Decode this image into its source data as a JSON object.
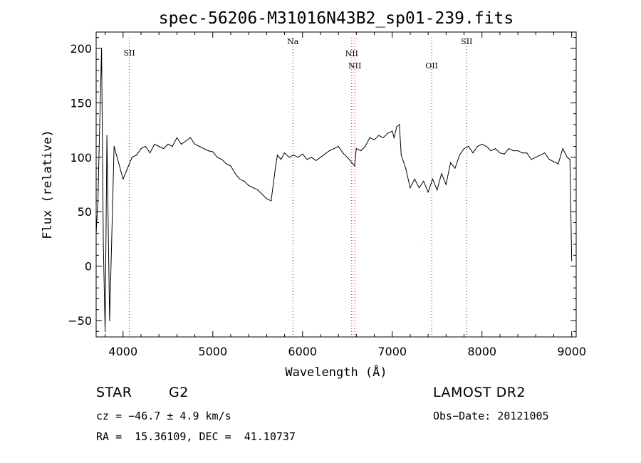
{
  "chart_data": {
    "type": "line",
    "title": "spec-56206-M31016N43B2_sp01-239.fits",
    "xlabel": "Wavelength (Å)",
    "ylabel": "Flux (relative)",
    "xlim": [
      3700,
      9050
    ],
    "ylim": [
      -65,
      215
    ],
    "x_ticks": [
      4000,
      5000,
      6000,
      7000,
      8000,
      9000
    ],
    "y_ticks": [
      -50,
      0,
      50,
      100,
      150,
      200
    ],
    "grid": false,
    "series": [
      {
        "x": [
          3700,
          3720,
          3740,
          3760,
          3780,
          3800,
          3820,
          3850,
          3900,
          3950,
          4000,
          4050,
          4100,
          4150,
          4200,
          4250,
          4300,
          4350,
          4400,
          4450,
          4500,
          4550,
          4600,
          4650,
          4700,
          4750,
          4800,
          4850,
          4900,
          4950,
          5000,
          5050,
          5100,
          5150,
          5200,
          5250,
          5300,
          5350,
          5400,
          5450,
          5500,
          5550,
          5600,
          5650,
          5700,
          5720,
          5740,
          5760,
          5800,
          5850,
          5900,
          5950,
          6000,
          6050,
          6100,
          6150,
          6200,
          6250,
          6300,
          6350,
          6400,
          6450,
          6500,
          6550,
          6580,
          6600,
          6650,
          6700,
          6750,
          6800,
          6850,
          6900,
          6950,
          7000,
          7020,
          7050,
          7080,
          7100,
          7150,
          7200,
          7250,
          7300,
          7350,
          7400,
          7450,
          7500,
          7550,
          7600,
          7650,
          7700,
          7750,
          7800,
          7850,
          7900,
          7950,
          8000,
          8050,
          8100,
          8150,
          8200,
          8250,
          8300,
          8350,
          8400,
          8450,
          8500,
          8550,
          8600,
          8650,
          8700,
          8750,
          8800,
          8850,
          8900,
          8950,
          8980,
          9000
        ],
        "y": [
          30,
          60,
          130,
          200,
          20,
          -60,
          120,
          -50,
          110,
          95,
          80,
          90,
          100,
          102,
          108,
          110,
          104,
          112,
          110,
          108,
          112,
          110,
          118,
          112,
          115,
          118,
          112,
          110,
          108,
          106,
          105,
          100,
          98,
          94,
          92,
          85,
          80,
          78,
          74,
          72,
          70,
          66,
          62,
          60,
          92,
          102,
          100,
          98,
          104,
          100,
          102,
          100,
          103,
          98,
          100,
          97,
          100,
          103,
          106,
          108,
          110,
          104,
          100,
          95,
          92,
          108,
          106,
          110,
          118,
          116,
          120,
          118,
          122,
          124,
          118,
          128,
          130,
          102,
          90,
          72,
          80,
          72,
          78,
          68,
          80,
          70,
          85,
          75,
          95,
          90,
          102,
          108,
          110,
          104,
          110,
          112,
          110,
          106,
          108,
          104,
          103,
          108,
          106,
          106,
          104,
          104,
          98,
          100,
          102,
          104,
          98,
          96,
          94,
          108,
          100,
          98,
          5
        ]
      }
    ],
    "line_markers": [
      {
        "label": "SII",
        "x": 4070
      },
      {
        "label": "Na",
        "x": 5893
      },
      {
        "label": "NII",
        "x": 6548
      },
      {
        "label": "NII",
        "x": 6583
      },
      {
        "label": "OII",
        "x": 7440
      },
      {
        "label": "SII",
        "x": 7830
      }
    ],
    "line_marker_color": "#d00000"
  },
  "info": {
    "object_class": "STAR",
    "subclass": "G2",
    "survey": "LAMOST DR2",
    "cz": "cz = −46.7 ± 4.9 km/s",
    "obs_date": "Obs−Date: 20121005",
    "coords": "RA =  15.36109, DEC =  41.10737"
  }
}
